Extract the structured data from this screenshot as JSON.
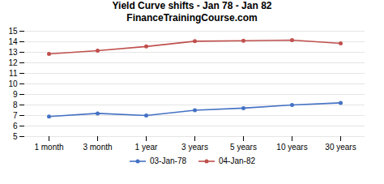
{
  "chart_data": {
    "type": "line",
    "title": "Yield Curve shifts - Jan 78 - Jan 82",
    "subtitle": "FinanceTrainingCourse.com",
    "categories": [
      "1 month",
      "3 month",
      "1 year",
      "3 years",
      "5 years",
      "10 years",
      "30 years"
    ],
    "series": [
      {
        "name": "03-Jan-78",
        "color": "#4472C4",
        "values": [
          6.9,
          7.2,
          7.0,
          7.5,
          7.7,
          8.0,
          8.2
        ]
      },
      {
        "name": "04-Jan-82",
        "color": "#C0504D",
        "values": [
          12.85,
          13.15,
          13.55,
          14.05,
          14.1,
          14.15,
          13.85
        ]
      }
    ],
    "ylim": [
      5,
      15
    ],
    "yticks": [
      5,
      6,
      7,
      8,
      9,
      10,
      11,
      12,
      13,
      14,
      15
    ],
    "grid": true,
    "legend": "bottom",
    "marker": "circle"
  }
}
